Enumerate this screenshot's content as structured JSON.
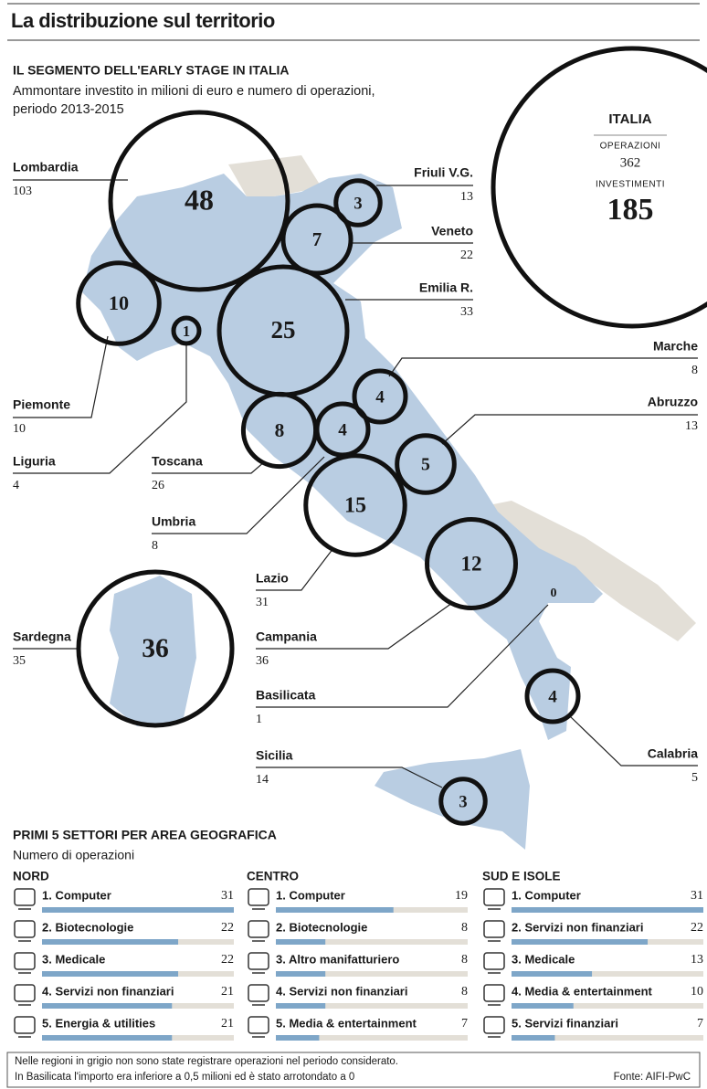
{
  "header": {
    "title": "La distribuzione sul territorio",
    "subtitle": "IL SEGMENTO DELL'EARLY STAGE IN ITALIA",
    "description": [
      "Ammontare investito in milioni di euro e numero di operazioni,",
      "periodo 2013-2015"
    ]
  },
  "italia": {
    "label": "ITALIA",
    "operations_label": "OPERAZIONI",
    "operations": 362,
    "investments_label": "INVESTIMENTI",
    "investments": 185
  },
  "regions": [
    {
      "name": "Lombardia",
      "operations": 103,
      "investment": 48
    },
    {
      "name": "Friuli V.G.",
      "operations": 13,
      "investment": 3
    },
    {
      "name": "Veneto",
      "operations": 22,
      "investment": 7
    },
    {
      "name": "Emilia R.",
      "operations": 33,
      "investment": 25
    },
    {
      "name": "Piemonte",
      "operations": 10,
      "investment": 10
    },
    {
      "name": "Liguria",
      "operations": 4,
      "investment": 1
    },
    {
      "name": "Marche",
      "operations": 8,
      "investment": 4
    },
    {
      "name": "Abruzzo",
      "operations": 13,
      "investment": 5
    },
    {
      "name": "Toscana",
      "operations": 26,
      "investment": 8
    },
    {
      "name": "Umbria",
      "operations": 8,
      "investment": 4
    },
    {
      "name": "Lazio",
      "operations": 31,
      "investment": 15
    },
    {
      "name": "Campania",
      "operations": 36,
      "investment": 12
    },
    {
      "name": "Sardegna",
      "operations": 35,
      "investment": 36
    },
    {
      "name": "Basilicata",
      "operations": 1,
      "investment": 0
    },
    {
      "name": "Calabria",
      "operations": 5,
      "investment": 4
    },
    {
      "name": "Sicilia",
      "operations": 14,
      "investment": 3
    }
  ],
  "sectors": {
    "title": "PRIMI 5 SETTORI PER AREA GEOGRAFICA",
    "subtitle": "Numero di operazioni",
    "xlim": [
      0,
      31
    ],
    "areas": [
      {
        "name": "NORD",
        "items": [
          {
            "label": "1. Computer",
            "value": 31
          },
          {
            "label": "2. Biotecnologie",
            "value": 22
          },
          {
            "label": "3. Medicale",
            "value": 22
          },
          {
            "label": "4. Servizi non finanziari",
            "value": 21
          },
          {
            "label": "5. Energia & utilities",
            "value": 21
          }
        ]
      },
      {
        "name": "CENTRO",
        "items": [
          {
            "label": "1. Computer",
            "value": 19
          },
          {
            "label": "2. Biotecnologie",
            "value": 8
          },
          {
            "label": "3. Altro manifatturiero",
            "value": 8
          },
          {
            "label": "4. Servizi non finanziari",
            "value": 8
          },
          {
            "label": "5. Media & entertainment",
            "value": 7
          }
        ]
      },
      {
        "name": "SUD E ISOLE",
        "items": [
          {
            "label": "1. Computer",
            "value": 31
          },
          {
            "label": "2. Servizi non finanziari",
            "value": 22
          },
          {
            "label": "3. Medicale",
            "value": 13
          },
          {
            "label": "4. Media & entertainment",
            "value": 10
          },
          {
            "label": "5. Servizi finanziari",
            "value": 7
          }
        ]
      }
    ]
  },
  "footer": {
    "notes": [
      "Nelle regioni in grigio non sono state registrare operazioni nel periodo considerato.",
      "In Basilicata l'importo era inferiore a 0,5 milioni ed è stato arrotondato a 0"
    ],
    "source": "Fonte: AIFI-PwC"
  }
}
